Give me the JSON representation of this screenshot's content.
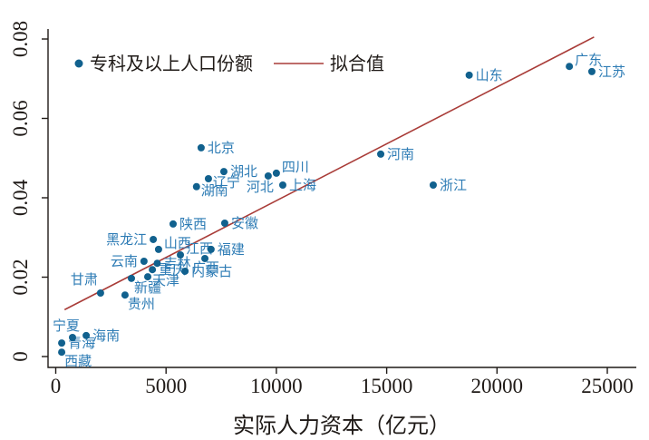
{
  "colors": {
    "dot": "#11618E",
    "point_label": "#2E7CB5",
    "fit_line": "#A93C38",
    "text": "#1F1A17",
    "background": "#FFFFFF"
  },
  "legend": {
    "items": [
      {
        "marker": "dot",
        "label": "专科及以上人口份额"
      },
      {
        "marker": "line",
        "label": "拟合值"
      }
    ]
  },
  "x_axis": {
    "title": "实际人力资本（亿元）",
    "ticks": [
      0,
      5000,
      10000,
      15000,
      20000,
      25000
    ],
    "range": [
      0,
      25000
    ]
  },
  "y_axis": {
    "ticks": [
      "0",
      "0.02",
      "0.04",
      "0.06",
      "0.08"
    ],
    "range": [
      0,
      0.08
    ]
  },
  "chart_data": {
    "type": "scatter",
    "title": "",
    "xlabel": "实际人力资本（亿元）",
    "ylabel": "",
    "xlim": [
      0,
      25000
    ],
    "ylim": [
      0,
      0.08
    ],
    "grid": false,
    "legend_position": "top-inside",
    "series": [
      {
        "name": "专科及以上人口份额",
        "points": [
          {
            "name": "西藏",
            "x": 270,
            "y": 0.0011,
            "label_pos": "below-right"
          },
          {
            "name": "青海",
            "x": 270,
            "y": 0.0034,
            "label_pos": "right"
          },
          {
            "name": "宁夏",
            "x": 760,
            "y": 0.0048,
            "label_pos": "above"
          },
          {
            "name": "海南",
            "x": 1380,
            "y": 0.0053,
            "label_pos": "right"
          },
          {
            "name": "甘肃",
            "x": 2030,
            "y": 0.016,
            "label_pos": "above-left"
          },
          {
            "name": "贵州",
            "x": 3140,
            "y": 0.0155,
            "label_pos": "below-right"
          },
          {
            "name": "新疆",
            "x": 3430,
            "y": 0.0197,
            "label_pos": "below-right"
          },
          {
            "name": "云南",
            "x": 4000,
            "y": 0.024,
            "label_pos": "left"
          },
          {
            "name": "天津",
            "x": 4170,
            "y": 0.0201,
            "label_pos": "right-below"
          },
          {
            "name": "重庆",
            "x": 4380,
            "y": 0.0219,
            "label_pos": "right"
          },
          {
            "name": "黑龙江",
            "x": 4420,
            "y": 0.0295,
            "label_pos": "left"
          },
          {
            "name": "吉林",
            "x": 4600,
            "y": 0.0235,
            "label_pos": "right"
          },
          {
            "name": "山西",
            "x": 4660,
            "y": 0.027,
            "label_pos": "above-right"
          },
          {
            "name": "陕西",
            "x": 5320,
            "y": 0.0334,
            "label_pos": "right"
          },
          {
            "name": "江西",
            "x": 5650,
            "y": 0.0256,
            "label_pos": "above-right"
          },
          {
            "name": "内蒙古",
            "x": 5860,
            "y": 0.0215,
            "label_pos": "right"
          },
          {
            "name": "湖南",
            "x": 6380,
            "y": 0.0428,
            "label_pos": "right-below"
          },
          {
            "name": "北京",
            "x": 6590,
            "y": 0.0526,
            "label_pos": "right"
          },
          {
            "name": "广西",
            "x": 6760,
            "y": 0.0247,
            "label_pos": "below"
          },
          {
            "name": "辽宁",
            "x": 6920,
            "y": 0.0448,
            "label_pos": "right-below"
          },
          {
            "name": "福建",
            "x": 7040,
            "y": 0.027,
            "label_pos": "right"
          },
          {
            "name": "湖北",
            "x": 7620,
            "y": 0.0466,
            "label_pos": "right"
          },
          {
            "name": "安徽",
            "x": 7660,
            "y": 0.0336,
            "label_pos": "right"
          },
          {
            "name": "河北",
            "x": 9630,
            "y": 0.0455,
            "label_pos": "below-left"
          },
          {
            "name": "四川",
            "x": 10000,
            "y": 0.0462,
            "label_pos": "above-right"
          },
          {
            "name": "上海",
            "x": 10290,
            "y": 0.0432,
            "label_pos": "right"
          },
          {
            "name": "河南",
            "x": 14730,
            "y": 0.051,
            "label_pos": "right"
          },
          {
            "name": "浙江",
            "x": 17110,
            "y": 0.0432,
            "label_pos": "right"
          },
          {
            "name": "山东",
            "x": 18740,
            "y": 0.0709,
            "label_pos": "right"
          },
          {
            "name": "广东",
            "x": 23280,
            "y": 0.0731,
            "label_pos": "above-right"
          },
          {
            "name": "江苏",
            "x": 24300,
            "y": 0.0718,
            "label_pos": "right"
          }
        ]
      }
    ],
    "fit_line": {
      "name": "拟合值",
      "x1": 400,
      "y1": 0.0118,
      "x2": 24400,
      "y2": 0.0805
    }
  }
}
